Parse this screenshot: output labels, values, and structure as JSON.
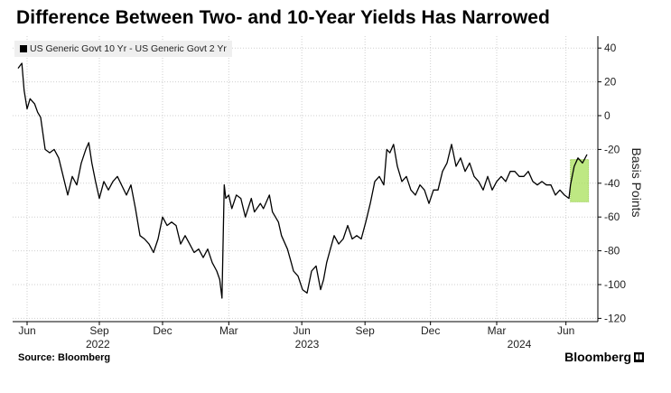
{
  "chart_data": {
    "type": "line",
    "title": "Difference Between Two- and 10-Year Yields Has Narrowed",
    "ylabel": "Basis Points",
    "xlabel": "",
    "x_unit": "days since late May 2022",
    "ylim": [
      -120,
      40
    ],
    "yticks": [
      40,
      20,
      0,
      -20,
      -40,
      -60,
      -80,
      -100,
      -120
    ],
    "xticks": [
      {
        "label": "Jun",
        "day": 12
      },
      {
        "label": "Sep",
        "day": 108
      },
      {
        "label": "Dec",
        "day": 192
      },
      {
        "label": "Mar",
        "day": 280
      },
      {
        "label": "Jun",
        "day": 377
      },
      {
        "label": "Sep",
        "day": 461
      },
      {
        "label": "Dec",
        "day": 548
      },
      {
        "label": "Mar",
        "day": 636
      },
      {
        "label": "Jun",
        "day": 728
      }
    ],
    "year_labels": [
      {
        "label": "2022",
        "day": 106
      },
      {
        "label": "2023",
        "day": 384
      },
      {
        "label": "2024",
        "day": 666
      }
    ],
    "grid": true,
    "legend_position": "top-left",
    "highlight": {
      "day_range": [
        734,
        758
      ],
      "value_range": [
        -51,
        -26
      ],
      "color": "#a8e05a"
    },
    "series": [
      {
        "name": "US Generic Govt 10 Yr - US Generic Govt 2 Yr",
        "color": "#000000",
        "points": [
          [
            0,
            28
          ],
          [
            5,
            31
          ],
          [
            8,
            15
          ],
          [
            12,
            4
          ],
          [
            16,
            10
          ],
          [
            22,
            7
          ],
          [
            26,
            2
          ],
          [
            30,
            -1
          ],
          [
            36,
            -20
          ],
          [
            42,
            -22
          ],
          [
            48,
            -20
          ],
          [
            54,
            -25
          ],
          [
            60,
            -36
          ],
          [
            66,
            -47
          ],
          [
            72,
            -36
          ],
          [
            78,
            -41
          ],
          [
            84,
            -28
          ],
          [
            90,
            -20
          ],
          [
            94,
            -16
          ],
          [
            98,
            -28
          ],
          [
            103,
            -39
          ],
          [
            108,
            -49
          ],
          [
            114,
            -39
          ],
          [
            120,
            -44
          ],
          [
            126,
            -39
          ],
          [
            132,
            -36
          ],
          [
            144,
            -47
          ],
          [
            150,
            -41
          ],
          [
            156,
            -55
          ],
          [
            162,
            -71
          ],
          [
            168,
            -73
          ],
          [
            174,
            -76
          ],
          [
            180,
            -81
          ],
          [
            186,
            -73
          ],
          [
            192,
            -60
          ],
          [
            198,
            -65
          ],
          [
            204,
            -63
          ],
          [
            210,
            -65
          ],
          [
            216,
            -76
          ],
          [
            222,
            -71
          ],
          [
            228,
            -76
          ],
          [
            234,
            -81
          ],
          [
            240,
            -79
          ],
          [
            246,
            -84
          ],
          [
            252,
            -79
          ],
          [
            258,
            -87
          ],
          [
            264,
            -92
          ],
          [
            268,
            -97
          ],
          [
            271,
            -108
          ],
          [
            274,
            -41
          ],
          [
            276,
            -49
          ],
          [
            280,
            -47
          ],
          [
            284,
            -55
          ],
          [
            290,
            -47
          ],
          [
            296,
            -49
          ],
          [
            302,
            -60
          ],
          [
            310,
            -49
          ],
          [
            314,
            -57
          ],
          [
            322,
            -52
          ],
          [
            326,
            -55
          ],
          [
            334,
            -47
          ],
          [
            338,
            -57
          ],
          [
            346,
            -63
          ],
          [
            350,
            -71
          ],
          [
            358,
            -79
          ],
          [
            363,
            -87
          ],
          [
            366,
            -92
          ],
          [
            372,
            -95
          ],
          [
            378,
            -103
          ],
          [
            384,
            -105
          ],
          [
            390,
            -92
          ],
          [
            396,
            -89
          ],
          [
            402,
            -103
          ],
          [
            406,
            -97
          ],
          [
            410,
            -87
          ],
          [
            415,
            -79
          ],
          [
            420,
            -71
          ],
          [
            426,
            -76
          ],
          [
            432,
            -73
          ],
          [
            438,
            -65
          ],
          [
            444,
            -73
          ],
          [
            450,
            -71
          ],
          [
            456,
            -73
          ],
          [
            462,
            -63
          ],
          [
            468,
            -52
          ],
          [
            474,
            -39
          ],
          [
            480,
            -36
          ],
          [
            486,
            -41
          ],
          [
            490,
            -20
          ],
          [
            494,
            -22
          ],
          [
            499,
            -17
          ],
          [
            504,
            -30
          ],
          [
            510,
            -39
          ],
          [
            516,
            -36
          ],
          [
            522,
            -44
          ],
          [
            528,
            -47
          ],
          [
            534,
            -41
          ],
          [
            540,
            -44
          ],
          [
            546,
            -52
          ],
          [
            552,
            -44
          ],
          [
            558,
            -44
          ],
          [
            564,
            -33
          ],
          [
            570,
            -28
          ],
          [
            576,
            -17
          ],
          [
            582,
            -30
          ],
          [
            588,
            -25
          ],
          [
            594,
            -33
          ],
          [
            600,
            -28
          ],
          [
            606,
            -36
          ],
          [
            612,
            -39
          ],
          [
            618,
            -44
          ],
          [
            624,
            -36
          ],
          [
            630,
            -44
          ],
          [
            636,
            -39
          ],
          [
            642,
            -36
          ],
          [
            648,
            -39
          ],
          [
            654,
            -33
          ],
          [
            660,
            -33
          ],
          [
            666,
            -36
          ],
          [
            672,
            -36
          ],
          [
            678,
            -33
          ],
          [
            684,
            -39
          ],
          [
            690,
            -41
          ],
          [
            696,
            -39
          ],
          [
            702,
            -41
          ],
          [
            708,
            -41
          ],
          [
            714,
            -47
          ],
          [
            720,
            -44
          ],
          [
            726,
            -47
          ],
          [
            732,
            -49
          ],
          [
            734,
            -41
          ],
          [
            739,
            -30
          ],
          [
            744,
            -25
          ],
          [
            750,
            -28
          ],
          [
            756,
            -23
          ]
        ]
      }
    ]
  },
  "footer": {
    "source": "Source: Bloomberg",
    "brand": "Bloomberg"
  }
}
